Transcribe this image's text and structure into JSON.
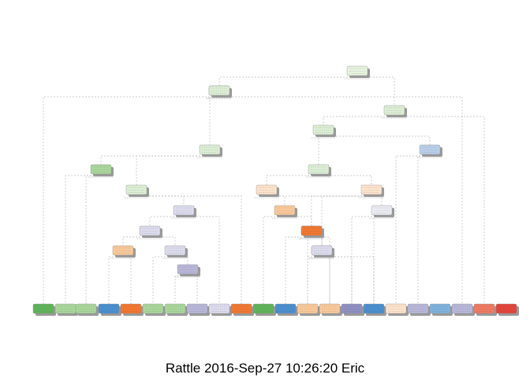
{
  "caption": "Rattle 2016-Sep-27 10:26:20 Eric",
  "colors": {
    "root": "#e8f3df",
    "green_light": "#dcefd5",
    "green_mid": "#a9d79b",
    "green_dark": "#5fb45a",
    "blue": "#4a8fcf",
    "blue_light": "#b9cfe9",
    "blue_pale": "#7fb2dc",
    "orange": "#f3772f",
    "orange_light": "#f9c99a",
    "orange_pale": "#fde3cc",
    "purple_light": "#dcdcee",
    "purple_mid": "#b8b7d9",
    "purple_dark": "#8f8fc2",
    "red": "#e2453b",
    "red_light": "#ef7a61",
    "gray_pale": "#ebebf3",
    "edge": "#bbbbbb"
  },
  "nodes": [
    {
      "id": "n1",
      "fill": "root",
      "children": [
        "n2",
        "n3"
      ]
    },
    {
      "id": "n2",
      "fill": "green_light",
      "children": [
        "L1",
        "n4"
      ]
    },
    {
      "id": "n3",
      "fill": "green_light",
      "children": [
        "n5",
        "L22"
      ]
    },
    {
      "id": "n4",
      "fill": "green_light",
      "children": [
        "n6",
        "L21"
      ]
    },
    {
      "id": "n5",
      "fill": "green_light",
      "children": [
        "n7",
        "n8"
      ]
    },
    {
      "id": "n6",
      "fill": "green_light",
      "children": [
        "n9",
        "n10"
      ]
    },
    {
      "id": "n7",
      "fill": "green_light",
      "children": [
        "n11",
        "n12"
      ]
    },
    {
      "id": "n8",
      "fill": "blue_light",
      "children": [
        "L18",
        "L19"
      ]
    },
    {
      "id": "n9",
      "fill": "green_mid",
      "children": [
        "L2",
        "L3"
      ]
    },
    {
      "id": "n10",
      "fill": "green_light",
      "children": [
        "n13",
        "L11"
      ]
    },
    {
      "id": "n11",
      "fill": "orange_pale",
      "children": [
        "n14",
        "n15"
      ]
    },
    {
      "id": "n12",
      "fill": "orange_pale",
      "children": [
        "n16",
        "n17"
      ]
    },
    {
      "id": "n13",
      "fill": "purple_light",
      "children": [
        "n18",
        "L10"
      ]
    },
    {
      "id": "n14",
      "fill": "orange_light",
      "children": [
        "L12",
        "n19"
      ]
    },
    {
      "id": "n15",
      "fill": "gray_pale",
      "children": [
        "L16",
        "L17"
      ]
    },
    {
      "id": "n16",
      "fill": "orange_light",
      "children": [
        "L13",
        "n20"
      ]
    },
    {
      "id": "n17",
      "fill": "purple_light",
      "children": [
        "L14",
        "L15"
      ]
    },
    {
      "id": "n18",
      "fill": "purple_light",
      "children": [
        "n21",
        "n22"
      ]
    },
    {
      "id": "n19",
      "fill": "orange",
      "children": [
        "L13b",
        "L14b"
      ]
    },
    {
      "id": "n20",
      "fill": "purple_light",
      "children": [
        "L15b",
        "L16b"
      ]
    },
    {
      "id": "n21",
      "fill": "orange_light",
      "children": [
        "L4",
        "L5"
      ]
    },
    {
      "id": "n22",
      "fill": "purple_light",
      "children": [
        "L6",
        "n23"
      ]
    },
    {
      "id": "n23",
      "fill": "purple_mid",
      "children": [
        "L7",
        "L8"
      ]
    }
  ],
  "leaves": [
    {
      "id": "L1",
      "fill": "green_dark"
    },
    {
      "id": "L2",
      "fill": "green_mid"
    },
    {
      "id": "L3",
      "fill": "green_mid"
    },
    {
      "id": "L4",
      "fill": "blue"
    },
    {
      "id": "L5",
      "fill": "orange"
    },
    {
      "id": "L6",
      "fill": "green_mid"
    },
    {
      "id": "L7",
      "fill": "green_mid"
    },
    {
      "id": "L8",
      "fill": "purple_mid"
    },
    {
      "id": "L10",
      "fill": "purple_light"
    },
    {
      "id": "L11",
      "fill": "orange"
    },
    {
      "id": "L12",
      "fill": "green_dark"
    },
    {
      "id": "L13",
      "fill": "blue"
    },
    {
      "id": "L14",
      "fill": "orange_light"
    },
    {
      "id": "L15",
      "fill": "orange_light"
    },
    {
      "id": "L16",
      "fill": "purple_dark"
    },
    {
      "id": "L17",
      "fill": "blue"
    },
    {
      "id": "L18",
      "fill": "orange_pale"
    },
    {
      "id": "L19",
      "fill": "purple_mid"
    },
    {
      "id": "L20",
      "fill": "blue_pale"
    },
    {
      "id": "L21",
      "fill": "purple_mid"
    },
    {
      "id": "L22",
      "fill": "red_light"
    },
    {
      "id": "L23",
      "fill": "red"
    },
    {
      "id": "L13b",
      "fill": "orange_light"
    },
    {
      "id": "L14b",
      "fill": "orange_light"
    },
    {
      "id": "L15b",
      "fill": "purple_dark"
    },
    {
      "id": "L16b",
      "fill": "purple_light"
    }
  ]
}
